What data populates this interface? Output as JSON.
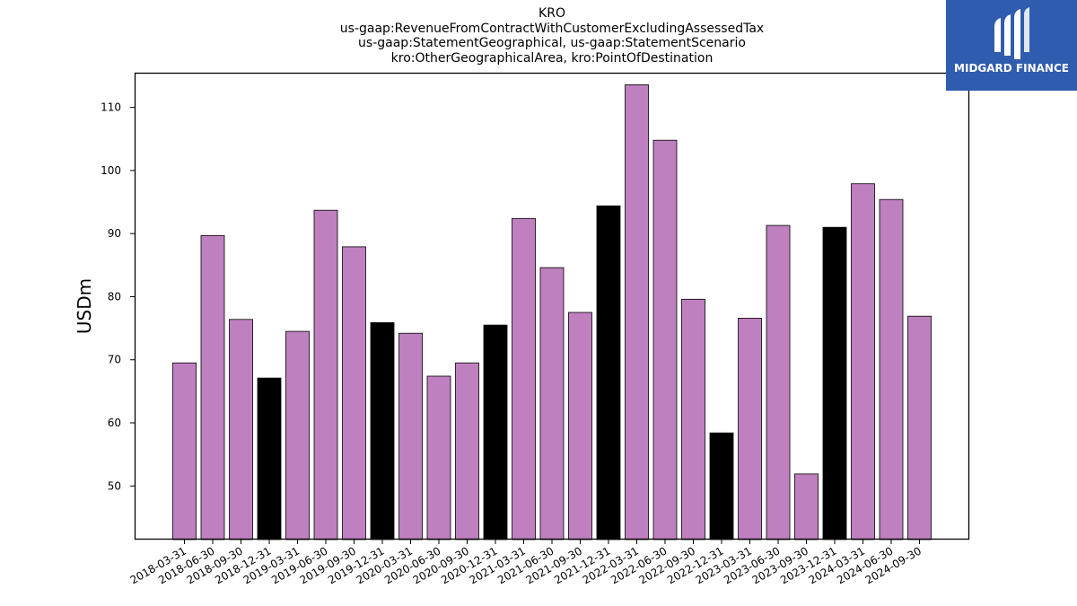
{
  "chart_data": {
    "type": "bar",
    "title_lines": [
      "KRO",
      "us-gaap:RevenueFromContractWithCustomerExcludingAssessedTax",
      "us-gaap:StatementGeographical, us-gaap:StatementScenario",
      "kro:OtherGeographicalArea, kro:PointOfDestination"
    ],
    "xlabel": "",
    "ylabel": "USDm",
    "ylim": [
      41.5,
      115.5
    ],
    "yticks": [
      50,
      60,
      70,
      80,
      90,
      100,
      110
    ],
    "categories": [
      "2018-03-31",
      "2018-06-30",
      "2018-09-30",
      "2018-12-31",
      "2019-03-31",
      "2019-06-30",
      "2019-09-30",
      "2019-12-31",
      "2020-03-31",
      "2020-06-30",
      "2020-09-30",
      "2020-12-31",
      "2021-03-31",
      "2021-06-30",
      "2021-09-30",
      "2021-12-31",
      "2022-03-31",
      "2022-06-30",
      "2022-09-30",
      "2022-12-31",
      "2023-03-31",
      "2023-06-30",
      "2023-09-30",
      "2023-12-31",
      "2024-03-31",
      "2024-06-30",
      "2024-09-30"
    ],
    "values": [
      69.5,
      89.7,
      76.4,
      67.1,
      74.5,
      93.7,
      87.9,
      75.9,
      74.2,
      67.4,
      69.5,
      75.5,
      92.4,
      84.6,
      77.5,
      94.4,
      113.6,
      104.8,
      79.6,
      58.4,
      76.6,
      91.3,
      51.9,
      91.0,
      97.9,
      95.4,
      76.9
    ],
    "highlight_q4": true,
    "colors": {
      "bar": "#bf80bf",
      "q4_bar": "#000000",
      "edge": "#000000"
    },
    "grid": false,
    "legend": "none"
  },
  "logo": {
    "text": "MIDGARD FINANCE",
    "bg": "#2f5cae"
  }
}
